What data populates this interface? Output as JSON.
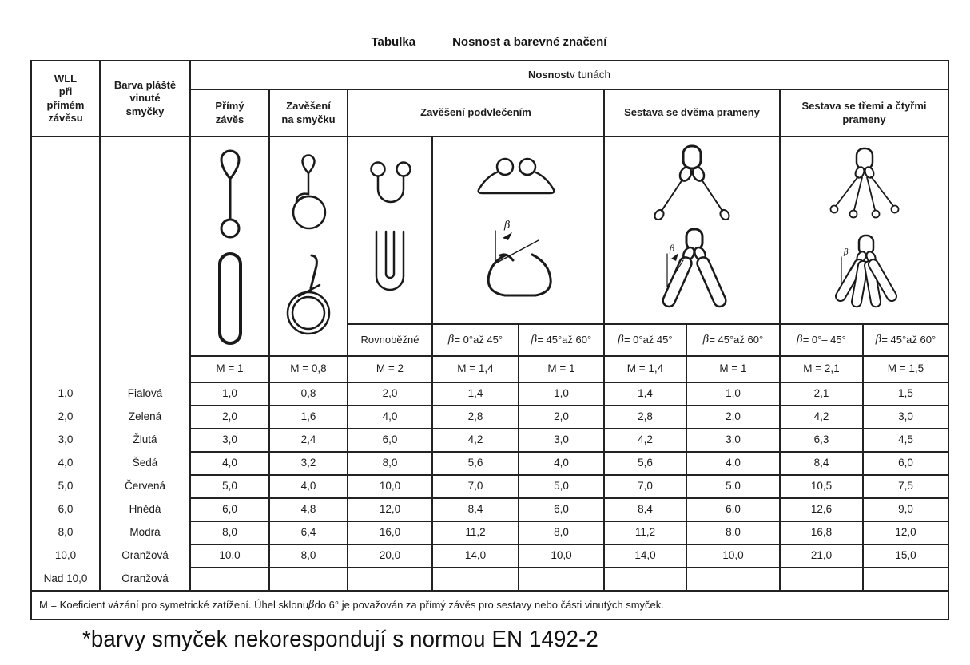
{
  "beta": "β",
  "title": {
    "label": "Tabulka",
    "caption": "Nosnost a barevné značení"
  },
  "header": {
    "wll": "WLL\npři\npřímém\nzávěsu",
    "barva": "Barva pláště\nvinuté\nsmyčky",
    "nosnost_bold": "Nosnost",
    "nosnost_rest": " v tunách",
    "primy_zaves": "Přímý\nzávěs",
    "na_smycku": "Zavěšení\nna smyčku",
    "podvlecenim": "Zavěšení podvlečením",
    "dvema": "Sestava se dvěma prameny",
    "tremi": "Sestava se třemi a čtyřmi\nprameny"
  },
  "angles": [
    "Rovnoběžné",
    "β = 0°až 45°",
    "β = 45°až 60°",
    "β = 0°až 45°",
    "β = 45°až 60°",
    "β = 0°– 45°",
    "β = 45°až 60°"
  ],
  "m_row": [
    "M = 1",
    "M = 0,8",
    "M = 2",
    "M = 1,4",
    "M = 1",
    "M = 1,4",
    "M = 1",
    "M = 2,1",
    "M = 1,5"
  ],
  "rows": [
    {
      "wll": "1,0",
      "color": "Fialová",
      "values": [
        "1,0",
        "0,8",
        "2,0",
        "1,4",
        "1,0",
        "1,4",
        "1,0",
        "2,1",
        "1,5"
      ]
    },
    {
      "wll": "2,0",
      "color": "Zelená",
      "values": [
        "2,0",
        "1,6",
        "4,0",
        "2,8",
        "2,0",
        "2,8",
        "2,0",
        "4,2",
        "3,0"
      ]
    },
    {
      "wll": "3,0",
      "color": "Žlutá",
      "values": [
        "3,0",
        "2,4",
        "6,0",
        "4,2",
        "3,0",
        "4,2",
        "3,0",
        "6,3",
        "4,5"
      ]
    },
    {
      "wll": "4,0",
      "color": "Šedá",
      "values": [
        "4,0",
        "3,2",
        "8,0",
        "5,6",
        "4,0",
        "5,6",
        "4,0",
        "8,4",
        "6,0"
      ]
    },
    {
      "wll": "5,0",
      "color": "Červená",
      "values": [
        "5,0",
        "4,0",
        "10,0",
        "7,0",
        "5,0",
        "7,0",
        "5,0",
        "10,5",
        "7,5"
      ]
    },
    {
      "wll": "6,0",
      "color": "Hnědá",
      "values": [
        "6,0",
        "4,8",
        "12,0",
        "8,4",
        "6,0",
        "8,4",
        "6,0",
        "12,6",
        "9,0"
      ]
    },
    {
      "wll": "8,0",
      "color": "Modrá",
      "values": [
        "8,0",
        "6,4",
        "16,0",
        "11,2",
        "8,0",
        "11,2",
        "8,0",
        "16,8",
        "12,0"
      ]
    },
    {
      "wll": "10,0",
      "color": "Oranžová",
      "values": [
        "10,0",
        "8,0",
        "20,0",
        "14,0",
        "10,0",
        "14,0",
        "10,0",
        "21,0",
        "15,0"
      ]
    },
    {
      "wll": "Nad 10,0",
      "color": "Oranžová",
      "values": [
        "",
        "",
        "",
        "",
        "",
        "",
        "",
        "",
        ""
      ]
    }
  ],
  "footnote": "M = Koeficient vázání pro symetrické zatížení. Úhel sklonu β do 6° je považován za přímý závěs pro sestavy nebo části vinutých smyček.",
  "bottom_note": "*barvy smyček nekorespondují s normou EN 1492-2",
  "diagrams": {
    "primy_zaves": [
      "eye-to-eye-sling",
      "endless-sling"
    ],
    "na_smycku": [
      "choke-on-ring",
      "twisted-loop"
    ],
    "rovnobezne": [
      "parallel-basket",
      "flat-basket"
    ],
    "podvlecenim": [
      "basket-hitch",
      "choke-hitch-beta"
    ],
    "dvema": [
      "two-leg-sling",
      "two-leg-choked-beta"
    ],
    "tremi": [
      "four-leg-sling",
      "four-leg-choked-beta"
    ]
  },
  "colors": {
    "ink": "#1c1c1c",
    "line": "#222222",
    "background": "#ffffff"
  }
}
